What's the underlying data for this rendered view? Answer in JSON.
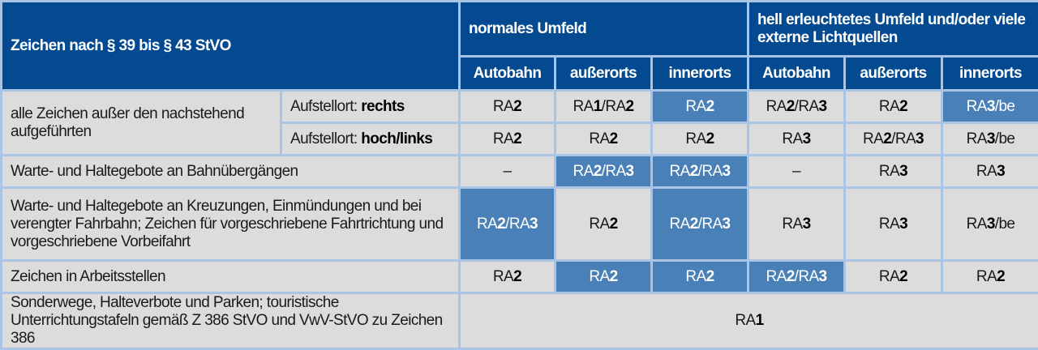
{
  "header": {
    "title": "Zeichen nach § 39 bis § 43 StVO",
    "group1": "normales Umfeld",
    "group2": "hell erleuchtetes Umfeld und/oder viele externe Lichtquellen",
    "columns": [
      "Autobahn",
      "außerorts",
      "innerorts",
      "Autobahn",
      "außerorts",
      "innerorts"
    ]
  },
  "colors": {
    "header": "#034a90",
    "highlight": "#4a80b8",
    "cell": "#dcdcdc",
    "border": "#a9c4e4"
  },
  "rows": [
    {
      "label": "alle Zeichen außer den nachstehend aufgeführten",
      "sub": [
        {
          "prefix": "Aufstellort: ",
          "bold": "rechts",
          "values": [
            "RA2",
            "RA1/RA2",
            "RA2",
            "RA2/RA3",
            "RA2",
            "RA3/be"
          ],
          "highlight": [
            false,
            false,
            true,
            false,
            false,
            true
          ]
        },
        {
          "prefix": "Aufstellort: ",
          "bold": "hoch/links",
          "values": [
            "RA2",
            "RA2",
            "RA2",
            "RA3",
            "RA2/RA3",
            "RA3/be"
          ],
          "highlight": [
            false,
            false,
            false,
            false,
            false,
            false
          ]
        }
      ]
    },
    {
      "label": "Warte- und Haltegebote an Bahnübergängen",
      "values": [
        "–",
        "RA2/RA3",
        "RA2/RA3",
        "–",
        "RA3",
        "RA3"
      ],
      "highlight": [
        false,
        true,
        true,
        false,
        false,
        false
      ]
    },
    {
      "label": "Warte- und Haltegebote an Kreuzungen, Einmündungen und bei verengter Fahrbahn; Zeichen für vorgeschriebene Fahrtrichtung und vorgeschriebene Vorbeifahrt",
      "values": [
        "RA2/RA3",
        "RA2",
        "RA2/RA3",
        "RA3",
        "RA3",
        "RA3/be"
      ],
      "highlight": [
        true,
        false,
        true,
        false,
        false,
        false
      ]
    },
    {
      "label": "Zeichen in Arbeitsstellen",
      "values": [
        "RA2",
        "RA2",
        "RA2",
        "RA2/RA3",
        "RA2",
        "RA2"
      ],
      "highlight": [
        false,
        true,
        true,
        true,
        false,
        false
      ]
    },
    {
      "label": "Sonderwege, Halteverbote und Parken; touristische Unterrichtungstafeln gemäß Z 386 StVO und VwV-StVO zu Zeichen 386",
      "value": "RA1"
    }
  ]
}
